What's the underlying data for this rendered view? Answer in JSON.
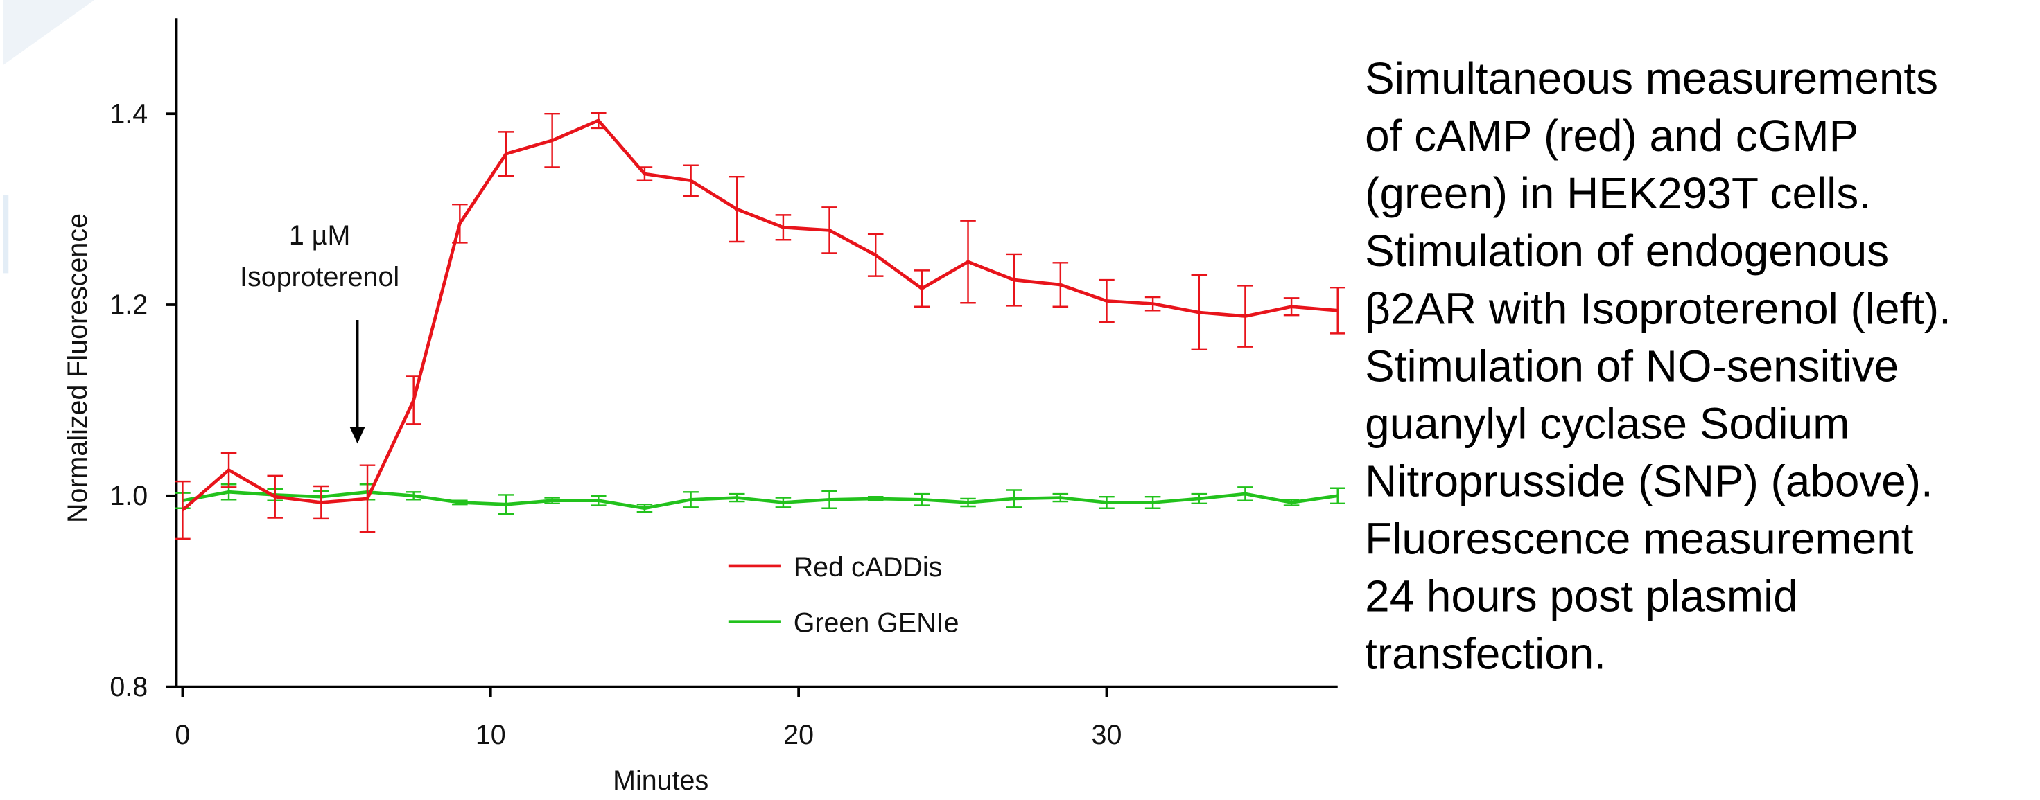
{
  "chart_data": {
    "type": "line",
    "ylabel": "Normalized Fluorescence",
    "xlabel": "Minutes",
    "annotation": [
      "1 µM",
      "Isoproterenol"
    ],
    "caption": [
      "Simultaneous measurements",
      "of cAMP (red) and cGMP",
      "(green) in HEK293T cells.",
      "Stimulation of endogenous",
      "β2AR with Isoproterenol (left).",
      "Stimulation of NO-sensitive",
      "guanylyl cyclase Sodium",
      "Nitroprusside (SNP) (above).",
      "Fluorescence measurement",
      "24 hours post plasmid",
      "transfection."
    ],
    "x": [
      0,
      1.5,
      3,
      4.5,
      6,
      7.5,
      9,
      10.5,
      12,
      13.5,
      15,
      16.5,
      18,
      19.5,
      21,
      22.5,
      24,
      25.5,
      27,
      28.5,
      30,
      31.5,
      33,
      34.5,
      36,
      37.5
    ],
    "series": [
      {
        "name": "Red cADDis",
        "color": "#e8141b",
        "values": [
          0.985,
          1.027,
          0.999,
          0.993,
          0.997,
          1.1,
          1.285,
          1.358,
          1.372,
          1.393,
          1.337,
          1.33,
          1.3,
          1.281,
          1.278,
          1.252,
          1.217,
          1.245,
          1.226,
          1.221,
          1.204,
          1.201,
          1.192,
          1.188,
          1.198,
          1.194
        ],
        "errors": [
          0.03,
          0.018,
          0.022,
          0.017,
          0.035,
          0.025,
          0.02,
          0.023,
          0.028,
          0.008,
          0.007,
          0.016,
          0.034,
          0.013,
          0.024,
          0.022,
          0.019,
          0.043,
          0.027,
          0.023,
          0.022,
          0.007,
          0.039,
          0.032,
          0.009,
          0.024
        ]
      },
      {
        "name": "Green GENIe",
        "color": "#22c21c",
        "values": [
          0.995,
          1.004,
          1.001,
          0.999,
          1.004,
          1.0,
          0.993,
          0.991,
          0.995,
          0.995,
          0.987,
          0.996,
          0.998,
          0.993,
          0.996,
          0.997,
          0.996,
          0.993,
          0.997,
          0.998,
          0.993,
          0.993,
          0.997,
          1.002,
          0.993,
          1.0
        ],
        "errors": [
          0.008,
          0.008,
          0.006,
          0.006,
          0.008,
          0.004,
          0.002,
          0.01,
          0.003,
          0.005,
          0.004,
          0.008,
          0.004,
          0.005,
          0.009,
          0.002,
          0.006,
          0.004,
          0.009,
          0.004,
          0.006,
          0.006,
          0.005,
          0.007,
          0.003,
          0.008
        ]
      }
    ],
    "xlim": [
      -0.2,
      37.5
    ],
    "ylim": [
      0.8,
      1.5
    ],
    "xticks": [
      0,
      10,
      20,
      30
    ],
    "yticks": [
      0.8,
      {
        "value": 1,
        "label": "1.0"
      },
      1.2,
      1.4
    ],
    "legend": "lower center"
  }
}
